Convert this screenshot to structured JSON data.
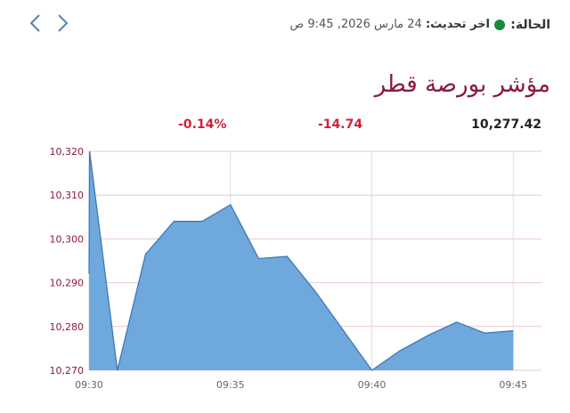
{
  "nav": {
    "prev_icon": "chevron-left-icon",
    "next_icon": "chevron-right-icon"
  },
  "status": {
    "label": "الحالة:",
    "indicator_color": "#1a8a3a"
  },
  "update": {
    "label": "اخر تحديث:",
    "value": "24 مارس 2026, 9:45 ص"
  },
  "index": {
    "title": "مؤشر بورصة قطر",
    "value": "10,277.42",
    "change": "-14.74",
    "change_percent": "-0.14%"
  },
  "colors": {
    "accent": "#8b1a3c",
    "negative": "#d1223a",
    "area_fill": "#6fa8dc",
    "area_line": "#3d7ab5"
  },
  "chart_data": {
    "type": "area",
    "x": [
      "09:30",
      "09:30",
      "09:31",
      "09:32",
      "09:33",
      "09:34",
      "09:35",
      "09:36",
      "09:37",
      "09:38",
      "09:39",
      "09:40",
      "09:41",
      "09:42",
      "09:43",
      "09:44",
      "09:45"
    ],
    "y": [
      10292,
      10320,
      10270,
      10296.5,
      10304,
      10304,
      10307.8,
      10295.5,
      10296,
      10288,
      10279,
      10270,
      10274.5,
      10278,
      10281,
      10278.5,
      10279
    ],
    "x_tick_labels": [
      "09:30",
      "09:35",
      "09:40",
      "09:45"
    ],
    "y_tick_labels": [
      "10,320",
      "10,310",
      "10,300",
      "10,290",
      "10,280",
      "10,270"
    ],
    "ylim": [
      10270,
      10320
    ],
    "grid": true
  }
}
